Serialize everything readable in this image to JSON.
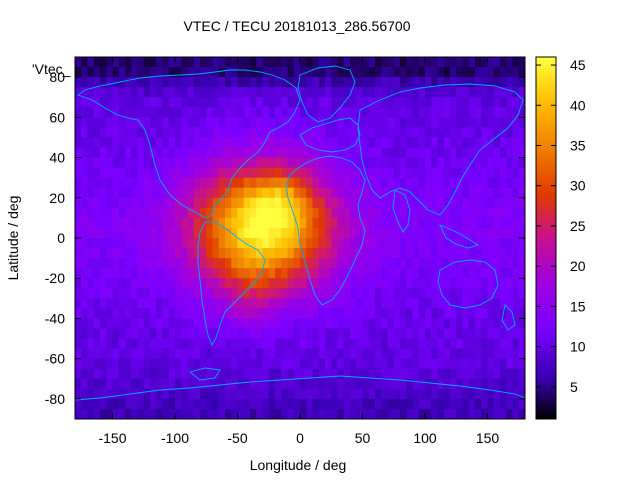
{
  "chart_data": {
    "type": "heatmap",
    "title": "VTEC / TECU 20181013_286.56700",
    "xlabel": "Longitude / deg",
    "ylabel": "Latitude / deg",
    "legend_label": "'Vtec_",
    "xlim": [
      -180,
      180
    ],
    "ylim": [
      -90,
      90
    ],
    "x_ticks": [
      -150,
      -100,
      -50,
      0,
      50,
      100,
      150
    ],
    "y_ticks": [
      -80,
      -60,
      -40,
      -20,
      0,
      20,
      40,
      60,
      80
    ],
    "colorbar": {
      "range": [
        1,
        46
      ],
      "ticks": [
        5,
        10,
        15,
        20,
        25,
        30,
        35,
        40,
        45
      ],
      "colors": [
        "#000000",
        "#3c00b8",
        "#7a00ff",
        "#a000e0",
        "#c8108c",
        "#e03a00",
        "#f08000",
        "#ffc000",
        "#ffff40"
      ]
    },
    "anomaly": {
      "center_lon": -30,
      "center_lat": 5,
      "peak_value": 45,
      "description_hidden": true
    },
    "background_value": 10
  }
}
